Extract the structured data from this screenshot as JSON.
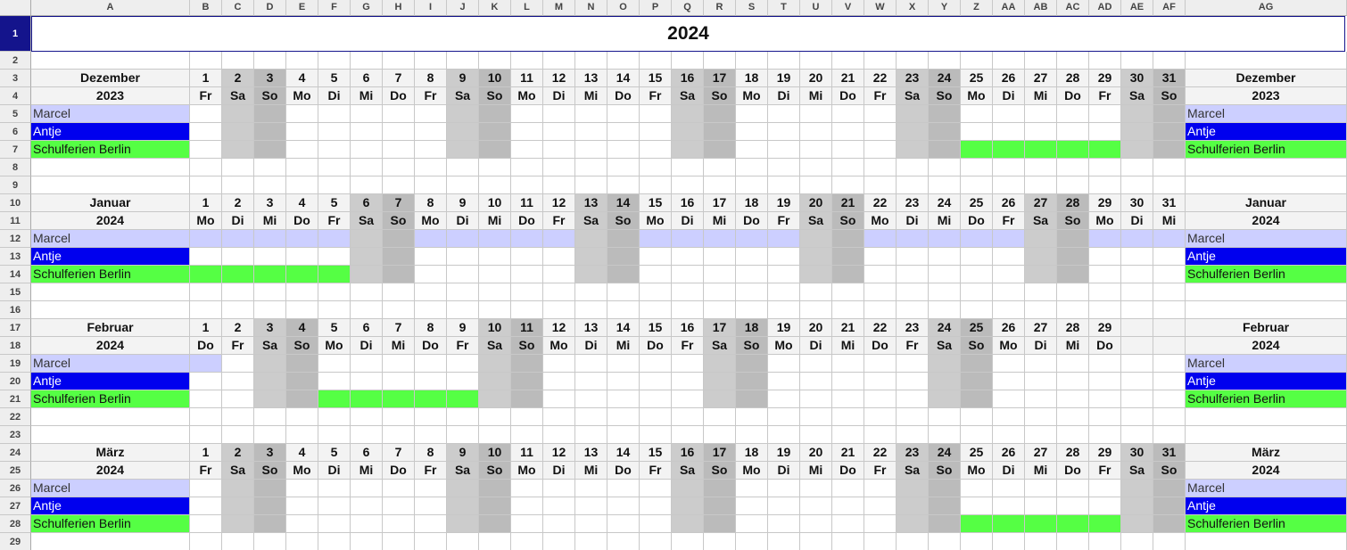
{
  "sheet": {
    "title": "2024",
    "columns": [
      "A",
      "B",
      "C",
      "D",
      "E",
      "F",
      "G",
      "H",
      "I",
      "J",
      "K",
      "L",
      "M",
      "N",
      "O",
      "P",
      "Q",
      "R",
      "S",
      "T",
      "U",
      "V",
      "W",
      "X",
      "Y",
      "Z",
      "AA",
      "AB",
      "AC",
      "AD",
      "AE",
      "AF",
      "AG"
    ],
    "rows": [
      "1",
      "2",
      "3",
      "4",
      "5",
      "6",
      "7",
      "8",
      "9",
      "10",
      "11",
      "12",
      "13",
      "14",
      "15",
      "16",
      "17",
      "18",
      "19",
      "20",
      "21",
      "22",
      "23",
      "24",
      "25",
      "26",
      "27",
      "28",
      "29"
    ],
    "people": [
      "Marcel",
      "Antje",
      "Schulferien Berlin"
    ],
    "colors": {
      "marcel": "#cccfff",
      "antje": "#0000ee",
      "holiday": "#55ff44",
      "saturday": "#cccccc",
      "sunday": "#bbbbbb",
      "header_bg": "#f3f3f3",
      "selection": "#14148c"
    },
    "months": [
      {
        "name": "Dezember",
        "year": "2023",
        "days": [
          "Fr",
          "Sa",
          "So",
          "Mo",
          "Di",
          "Mi",
          "Do",
          "Fr",
          "Sa",
          "So",
          "Mo",
          "Di",
          "Mi",
          "Do",
          "Fr",
          "Sa",
          "So",
          "Mo",
          "Di",
          "Mi",
          "Do",
          "Fr",
          "Sa",
          "So",
          "Mo",
          "Di",
          "Mi",
          "Do",
          "Fr",
          "Sa",
          "So"
        ],
        "marcel_days": [],
        "holiday_days": [
          25,
          26,
          27,
          28,
          29
        ]
      },
      {
        "name": "Januar",
        "year": "2024",
        "days": [
          "Mo",
          "Di",
          "Mi",
          "Do",
          "Fr",
          "Sa",
          "So",
          "Mo",
          "Di",
          "Mi",
          "Do",
          "Fr",
          "Sa",
          "So",
          "Mo",
          "Di",
          "Mi",
          "Do",
          "Fr",
          "Sa",
          "So",
          "Mo",
          "Di",
          "Mi",
          "Do",
          "Fr",
          "Sa",
          "So",
          "Mo",
          "Di",
          "Mi"
        ],
        "marcel_days": [
          1,
          2,
          3,
          4,
          5,
          8,
          9,
          10,
          11,
          12,
          15,
          16,
          17,
          18,
          19,
          22,
          23,
          24,
          25,
          26,
          29,
          30,
          31
        ],
        "holiday_days": [
          1,
          2,
          3,
          4,
          5
        ]
      },
      {
        "name": "Februar",
        "year": "2024",
        "days": [
          "Do",
          "Fr",
          "Sa",
          "So",
          "Mo",
          "Di",
          "Mi",
          "Do",
          "Fr",
          "Sa",
          "So",
          "Mo",
          "Di",
          "Mi",
          "Do",
          "Fr",
          "Sa",
          "So",
          "Mo",
          "Di",
          "Mi",
          "Do",
          "Fr",
          "Sa",
          "So",
          "Mo",
          "Di",
          "Mi",
          "Do"
        ],
        "marcel_days": [
          1
        ],
        "holiday_days": [
          5,
          6,
          7,
          8,
          9
        ]
      },
      {
        "name": "März",
        "year": "2024",
        "days": [
          "Fr",
          "Sa",
          "So",
          "Mo",
          "Di",
          "Mi",
          "Do",
          "Fr",
          "Sa",
          "So",
          "Mo",
          "Di",
          "Mi",
          "Do",
          "Fr",
          "Sa",
          "So",
          "Mo",
          "Di",
          "Mi",
          "Do",
          "Fr",
          "Sa",
          "So",
          "Mo",
          "Di",
          "Mi",
          "Do",
          "Fr",
          "Sa",
          "So"
        ],
        "marcel_days": [],
        "holiday_days": [
          25,
          26,
          27,
          28,
          29
        ]
      }
    ]
  }
}
